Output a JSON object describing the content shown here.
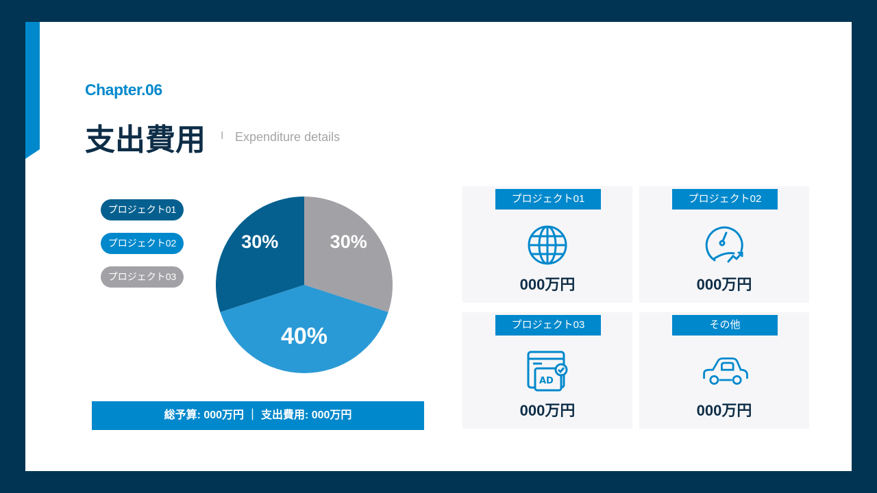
{
  "header": {
    "chapter": "Chapter.06",
    "title": "支出費用",
    "separator": "I",
    "subtitle": "Expenditure details"
  },
  "colors": {
    "frame": "#003452",
    "accent": "#0088cc",
    "project01": "#05608f",
    "project02": "#2a9ad6",
    "project03": "#a2a1a5"
  },
  "chart_data": {
    "type": "pie",
    "categories": [
      "プロジェクト01",
      "プロジェクト02",
      "プロジェクト03"
    ],
    "values": [
      30,
      40,
      30
    ],
    "labels": [
      "30%",
      "40%",
      "30%"
    ],
    "legend": "left"
  },
  "budget_summary": "総予算: 000万円 ｜ 支出費用: 000万円",
  "cards": [
    {
      "label": "プロジェクト01",
      "value": "000万円",
      "icon": "globe-icon"
    },
    {
      "label": "プロジェクト02",
      "value": "000万円",
      "icon": "speedometer-growth-icon"
    },
    {
      "label": "プロジェクト03",
      "value": "000万円",
      "icon": "ad-browser-icon"
    },
    {
      "label": "その他",
      "value": "000万円",
      "icon": "car-icon"
    }
  ]
}
